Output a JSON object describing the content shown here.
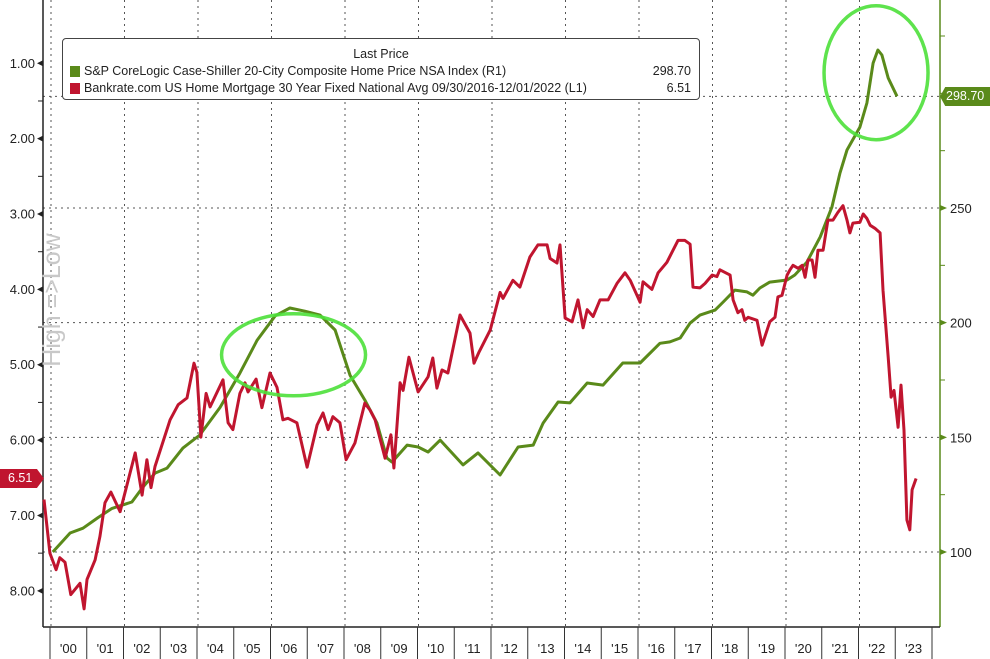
{
  "legend": {
    "title": "Last Price",
    "series": [
      {
        "name": "S&P CoreLogic Case-Shiller 20-City Composite Home Price NSA Index  (R1)",
        "value": "298.70",
        "color": "#5a8a1a"
      },
      {
        "name": "Bankrate.com US Home Mortgage 30 Year Fixed National Avg 09/30/2016-12/01/2022   (L1)",
        "value": "6.51",
        "color": "#c0152f"
      }
    ]
  },
  "side_label": "High =>Low",
  "badges": {
    "left": "6.51",
    "right": "298.70"
  },
  "chart_data": {
    "type": "line",
    "title": "",
    "xlabel": "",
    "x_ticks": [
      "'00",
      "'01",
      "'02",
      "'03",
      "'04",
      "'05",
      "'06",
      "'07",
      "'08",
      "'09",
      "'10",
      "'11",
      "'12",
      "'13",
      "'14",
      "'15",
      "'16",
      "'17",
      "'18",
      "'19",
      "'20",
      "'21",
      "'22",
      "'23"
    ],
    "xlim": [
      2000,
      2024
    ],
    "left_axis": {
      "ticks": [
        "1.00",
        "2.00",
        "3.00",
        "4.00",
        "5.00",
        "6.00",
        "7.00",
        "8.00"
      ],
      "tick_values": [
        1,
        2,
        3,
        4,
        5,
        6,
        7,
        8
      ],
      "inverted": true,
      "ylim": [
        0.16,
        8.48
      ]
    },
    "right_axis": {
      "ticks": [
        "100",
        "150",
        "200",
        "250"
      ],
      "tick_values": [
        100,
        150,
        200,
        250
      ],
      "minor_values": [
        125,
        175,
        225,
        275,
        300,
        325
      ],
      "ylim": [
        67.3,
        340.7
      ]
    },
    "grid": true,
    "legend_position": "top-left",
    "annotations": [
      {
        "type": "ellipse",
        "around": "2006 peak"
      },
      {
        "type": "ellipse",
        "around": "2022 peak"
      }
    ],
    "series": [
      {
        "name": "S&P CoreLogic Case-Shiller 20-City Composite Home Price NSA Index",
        "axis": "right",
        "color": "#5a8a1a",
        "last": 298.7,
        "points": [
          [
            2000.05,
            100
          ],
          [
            2000.52,
            108.3
          ],
          [
            2000.87,
            110.4
          ],
          [
            2001.28,
            115
          ],
          [
            2001.66,
            119
          ],
          [
            2002.2,
            121.8
          ],
          [
            2002.5,
            128.3
          ],
          [
            2002.83,
            134.4
          ],
          [
            2003.16,
            136.6
          ],
          [
            2003.59,
            145.3
          ],
          [
            2004.05,
            151
          ],
          [
            2004.6,
            163
          ],
          [
            2005.14,
            178
          ],
          [
            2005.61,
            192.4
          ],
          [
            2006.1,
            203
          ],
          [
            2006.5,
            206.4
          ],
          [
            2006.91,
            205
          ],
          [
            2007.32,
            203.3
          ],
          [
            2007.73,
            196.8
          ],
          [
            2008.14,
            177
          ],
          [
            2008.54,
            166.3
          ],
          [
            2008.87,
            156.2
          ],
          [
            2009.14,
            141
          ],
          [
            2009.28,
            139.2
          ],
          [
            2009.69,
            146.6
          ],
          [
            2009.99,
            145.8
          ],
          [
            2010.26,
            143.6
          ],
          [
            2010.59,
            148.8
          ],
          [
            2011.21,
            138
          ],
          [
            2011.62,
            143.2
          ],
          [
            2012.22,
            133.6
          ],
          [
            2012.71,
            145.8
          ],
          [
            2013.12,
            146.6
          ],
          [
            2013.39,
            156.2
          ],
          [
            2013.8,
            165.4
          ],
          [
            2014.12,
            165
          ],
          [
            2014.59,
            173.7
          ],
          [
            2015.02,
            172.8
          ],
          [
            2015.56,
            182.4
          ],
          [
            2016.03,
            182.4
          ],
          [
            2016.57,
            191
          ],
          [
            2016.84,
            191.6
          ],
          [
            2017.12,
            193.3
          ],
          [
            2017.39,
            199.8
          ],
          [
            2017.66,
            203.3
          ],
          [
            2018.07,
            205.5
          ],
          [
            2018.29,
            209
          ],
          [
            2018.61,
            214.2
          ],
          [
            2018.94,
            213.4
          ],
          [
            2019.1,
            212
          ],
          [
            2019.29,
            215.1
          ],
          [
            2019.56,
            217.7
          ],
          [
            2020.03,
            218.6
          ],
          [
            2020.24,
            220.8
          ],
          [
            2020.57,
            226.4
          ],
          [
            2020.93,
            237.4
          ],
          [
            2021.25,
            250.4
          ],
          [
            2021.47,
            265.3
          ],
          [
            2021.66,
            275.3
          ],
          [
            2022.01,
            285.3
          ],
          [
            2022.2,
            295.8
          ],
          [
            2022.37,
            313.2
          ],
          [
            2022.5,
            318.9
          ],
          [
            2022.61,
            316.7
          ],
          [
            2022.78,
            306.7
          ],
          [
            2023.02,
            298.7
          ]
        ]
      },
      {
        "name": "Bankrate.com US Home Mortgage 30 Year Fixed National Avg",
        "axis": "left",
        "color": "#c0152f",
        "last": 6.51,
        "points": [
          [
            1999.81,
            6.79
          ],
          [
            1999.97,
            7.5
          ],
          [
            2000.14,
            7.72
          ],
          [
            2000.24,
            7.56
          ],
          [
            2000.38,
            7.62
          ],
          [
            2000.54,
            8.05
          ],
          [
            2000.79,
            7.9
          ],
          [
            2000.9,
            8.24
          ],
          [
            2000.98,
            7.85
          ],
          [
            2001.2,
            7.59
          ],
          [
            2001.33,
            7.28
          ],
          [
            2001.47,
            6.83
          ],
          [
            2001.63,
            6.69
          ],
          [
            2001.88,
            6.95
          ],
          [
            2002.29,
            6.17
          ],
          [
            2002.48,
            6.73
          ],
          [
            2002.61,
            6.26
          ],
          [
            2002.72,
            6.63
          ],
          [
            2002.83,
            6.35
          ],
          [
            2003.24,
            5.73
          ],
          [
            2003.46,
            5.53
          ],
          [
            2003.7,
            5.44
          ],
          [
            2003.89,
            4.98
          ],
          [
            2003.97,
            5.1
          ],
          [
            2004.08,
            5.96
          ],
          [
            2004.22,
            5.38
          ],
          [
            2004.33,
            5.56
          ],
          [
            2004.68,
            5.2
          ],
          [
            2004.82,
            5.77
          ],
          [
            2004.95,
            5.86
          ],
          [
            2005.14,
            5.38
          ],
          [
            2005.28,
            5.24
          ],
          [
            2005.36,
            5.36
          ],
          [
            2005.58,
            5.19
          ],
          [
            2005.74,
            5.57
          ],
          [
            2005.96,
            5.11
          ],
          [
            2006.15,
            5.3
          ],
          [
            2006.31,
            5.73
          ],
          [
            2006.45,
            5.71
          ],
          [
            2006.69,
            5.77
          ],
          [
            2006.97,
            6.36
          ],
          [
            2007.24,
            5.8
          ],
          [
            2007.4,
            5.64
          ],
          [
            2007.54,
            5.86
          ],
          [
            2007.67,
            5.69
          ],
          [
            2007.86,
            5.77
          ],
          [
            2008.03,
            6.26
          ],
          [
            2008.27,
            6.04
          ],
          [
            2008.54,
            5.51
          ],
          [
            2008.68,
            5.6
          ],
          [
            2008.82,
            5.73
          ],
          [
            2009.09,
            6.24
          ],
          [
            2009.25,
            5.93
          ],
          [
            2009.33,
            6.37
          ],
          [
            2009.5,
            5.24
          ],
          [
            2009.58,
            5.34
          ],
          [
            2009.74,
            4.9
          ],
          [
            2009.99,
            5.36
          ],
          [
            2010.26,
            5.16
          ],
          [
            2010.39,
            4.91
          ],
          [
            2010.5,
            5.31
          ],
          [
            2010.64,
            5.07
          ],
          [
            2010.8,
            5.11
          ],
          [
            2011.13,
            4.34
          ],
          [
            2011.4,
            4.58
          ],
          [
            2011.51,
            4.98
          ],
          [
            2011.65,
            4.83
          ],
          [
            2011.95,
            4.54
          ],
          [
            2012.22,
            4.04
          ],
          [
            2012.3,
            4.12
          ],
          [
            2012.57,
            3.88
          ],
          [
            2012.76,
            3.97
          ],
          [
            2013.03,
            3.57
          ],
          [
            2013.25,
            3.41
          ],
          [
            2013.5,
            3.41
          ],
          [
            2013.58,
            3.59
          ],
          [
            2013.77,
            3.65
          ],
          [
            2013.85,
            3.41
          ],
          [
            2013.99,
            4.38
          ],
          [
            2014.18,
            4.43
          ],
          [
            2014.34,
            4.14
          ],
          [
            2014.48,
            4.51
          ],
          [
            2014.59,
            4.27
          ],
          [
            2014.75,
            4.36
          ],
          [
            2014.94,
            4.14
          ],
          [
            2015.16,
            4.14
          ],
          [
            2015.4,
            3.92
          ],
          [
            2015.62,
            3.78
          ],
          [
            2015.76,
            3.88
          ],
          [
            2016.03,
            4.17
          ],
          [
            2016.11,
            3.9
          ],
          [
            2016.35,
            4.0
          ],
          [
            2016.52,
            3.78
          ],
          [
            2016.76,
            3.64
          ],
          [
            2017.06,
            3.35
          ],
          [
            2017.25,
            3.35
          ],
          [
            2017.39,
            3.4
          ],
          [
            2017.47,
            3.97
          ],
          [
            2017.66,
            3.98
          ],
          [
            2017.8,
            3.92
          ],
          [
            2017.99,
            3.81
          ],
          [
            2018.12,
            3.83
          ],
          [
            2018.2,
            3.74
          ],
          [
            2018.48,
            3.81
          ],
          [
            2018.56,
            4.14
          ],
          [
            2018.69,
            4.31
          ],
          [
            2018.8,
            4.27
          ],
          [
            2018.88,
            4.41
          ],
          [
            2018.97,
            4.37
          ],
          [
            2019.21,
            4.41
          ],
          [
            2019.35,
            4.74
          ],
          [
            2019.56,
            4.43
          ],
          [
            2019.7,
            4.37
          ],
          [
            2019.78,
            4.1
          ],
          [
            2019.89,
            4.08
          ],
          [
            2020.03,
            3.81
          ],
          [
            2020.11,
            3.74
          ],
          [
            2020.19,
            3.68
          ],
          [
            2020.33,
            3.72
          ],
          [
            2020.44,
            3.68
          ],
          [
            2020.52,
            3.84
          ],
          [
            2020.6,
            3.61
          ],
          [
            2020.71,
            3.61
          ],
          [
            2020.79,
            3.84
          ],
          [
            2020.87,
            3.48
          ],
          [
            2021.01,
            3.48
          ],
          [
            2021.14,
            3.08
          ],
          [
            2021.28,
            3.08
          ],
          [
            2021.41,
            2.98
          ],
          [
            2021.55,
            2.89
          ],
          [
            2021.66,
            3.08
          ],
          [
            2021.74,
            3.25
          ],
          [
            2021.82,
            3.12
          ],
          [
            2022.01,
            3.11
          ],
          [
            2022.1,
            3.0
          ],
          [
            2022.2,
            3.06
          ],
          [
            2022.29,
            3.15
          ],
          [
            2022.42,
            3.19
          ],
          [
            2022.56,
            3.25
          ],
          [
            2022.64,
            4.01
          ],
          [
            2022.78,
            4.9
          ],
          [
            2022.86,
            5.43
          ],
          [
            2022.94,
            5.34
          ],
          [
            2023.05,
            5.83
          ],
          [
            2023.13,
            5.27
          ],
          [
            2023.21,
            5.87
          ],
          [
            2023.29,
            7.06
          ],
          [
            2023.37,
            7.19
          ],
          [
            2023.43,
            6.66
          ],
          [
            2023.54,
            6.51
          ]
        ]
      }
    ]
  }
}
